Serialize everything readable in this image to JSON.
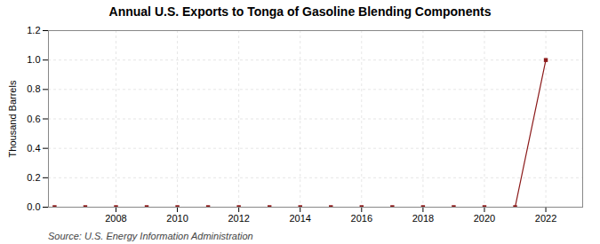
{
  "chart_data": {
    "type": "line",
    "title": "Annual U.S. Exports to Tonga of Gasoline Blending Components",
    "ylabel": "Thousand Barrels",
    "source": "Source: U.S. Energy Information Administration",
    "x": [
      2006,
      2007,
      2008,
      2009,
      2010,
      2011,
      2012,
      2013,
      2014,
      2015,
      2016,
      2017,
      2018,
      2019,
      2020,
      2021,
      2022
    ],
    "values": [
      0,
      0,
      0,
      0,
      0,
      0,
      0,
      0,
      0,
      0,
      0,
      0,
      0,
      0,
      0,
      0,
      1.0
    ],
    "color": "#8b1a1a",
    "marker": "square",
    "xlim": [
      2005.8,
      2023.2
    ],
    "xticks": [
      2008,
      2010,
      2012,
      2014,
      2016,
      2018,
      2020,
      2022
    ],
    "ylim": [
      0.0,
      1.2
    ],
    "yticks": [
      {
        "value": 0.0,
        "label": "0.0"
      },
      0.2,
      0.4,
      0.6,
      0.8,
      {
        "value": 1.0,
        "label": "1.0"
      },
      1.2
    ],
    "grid": true
  }
}
